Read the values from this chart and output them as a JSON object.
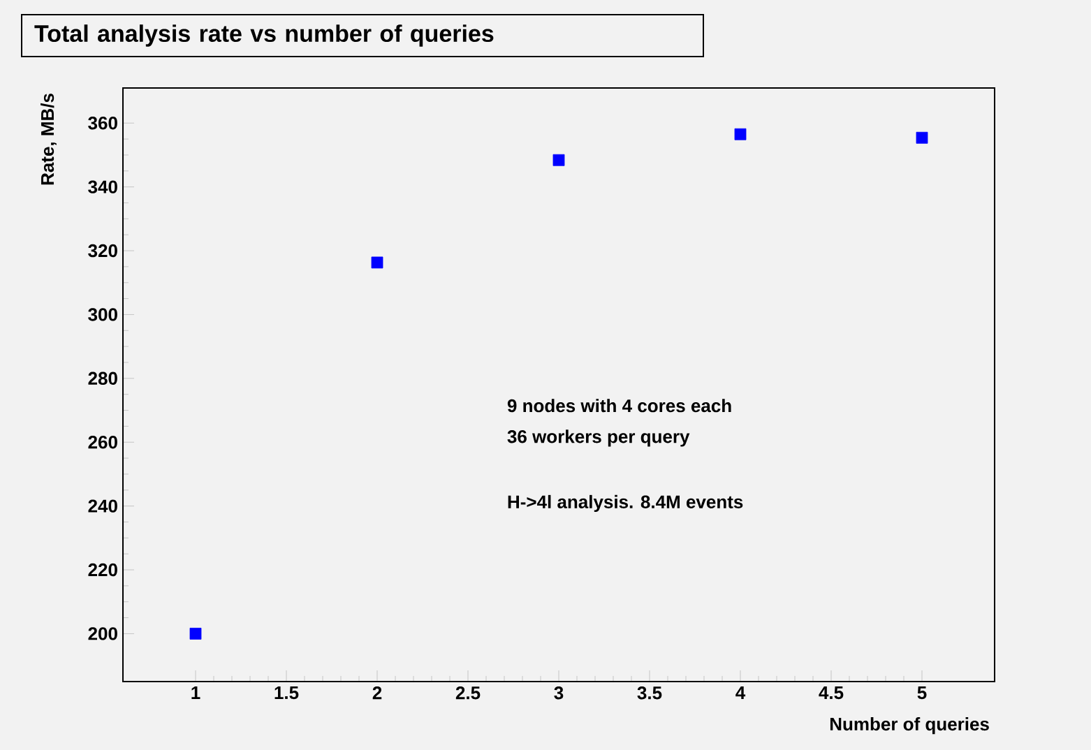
{
  "chart_data": {
    "type": "scatter",
    "title": "Total analysis rate vs number of queries",
    "xlabel": "Number of queries",
    "ylabel": "Rate, MB/s",
    "x": [
      1,
      2,
      3,
      4,
      5
    ],
    "series": [
      {
        "color": "#0000ff",
        "values": [
          200,
          316.3,
          348.4,
          356.5,
          355.4
        ]
      }
    ],
    "marker": "square",
    "xlim": [
      0.6,
      5.4
    ],
    "ylim": [
      185,
      371
    ],
    "xticks": [
      1,
      1.5,
      2,
      2.5,
      3,
      3.5,
      4,
      4.5,
      5
    ],
    "yticks": [
      200,
      220,
      240,
      260,
      280,
      300,
      320,
      340,
      360
    ],
    "annotations": [
      "9 nodes with 4 cores each",
      "36 workers per query",
      "H->4l analysis. 8.4M events"
    ]
  }
}
